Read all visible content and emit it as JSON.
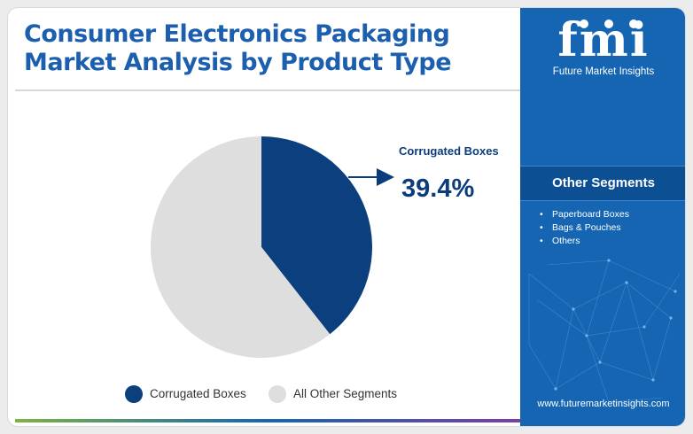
{
  "title_line1": "Consumer Electronics Packaging",
  "title_line2": "Market Analysis by Product Type",
  "brand": {
    "logo": "fmi",
    "name": "Future Market Insights",
    "website": "www.futuremarketinsights.com"
  },
  "other_segments": {
    "heading": "Other Segments",
    "items": [
      "Paperboard Boxes",
      "Bags & Pouches",
      "Others"
    ]
  },
  "colors": {
    "title": "#1b5fae",
    "highlight_slice": "#0b3f7d",
    "other_slice": "#dedede",
    "panel": "#1565b3"
  },
  "chart_data": {
    "type": "pie",
    "title": "Consumer Electronics Packaging Market Analysis by Product Type",
    "slices": [
      {
        "label": "Corrugated Boxes",
        "value": 39.4,
        "color": "#0b3f7d"
      },
      {
        "label": "All Other Segments",
        "value": 60.6,
        "color": "#dedede"
      }
    ],
    "callout": {
      "label": "Corrugated Boxes",
      "value_text": "39.4%"
    },
    "legend": [
      "Corrugated Boxes",
      "All Other Segments"
    ],
    "legend_position": "bottom"
  }
}
